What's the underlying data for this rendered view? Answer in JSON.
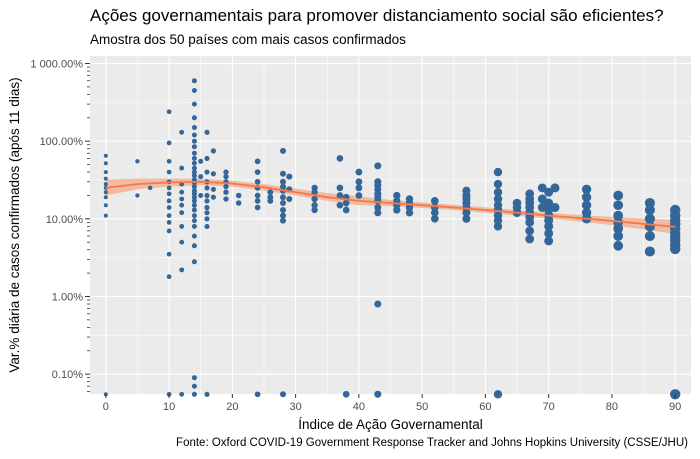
{
  "chart_data": {
    "type": "scatter",
    "title": "Ações governamentais para promover distanciamento social são eficientes?",
    "subtitle": "Amostra dos 50 países com mais casos confirmados",
    "caption": "Fonte: Oxford COVID-19 Government Response Tracker and Johns Hopkins University (CSSE/JHU)",
    "xlabel": "Índice de Ação Governamental",
    "ylabel": "Var.% diária de casos confirmados (após 11 dias)",
    "xlim": [
      -2.5,
      92.5
    ],
    "ylim": [
      0.0555,
      1250
    ],
    "y_scale": "log",
    "x_ticks": [
      0,
      10,
      20,
      30,
      40,
      50,
      60,
      70,
      80,
      90
    ],
    "x_tick_labels": [
      "0",
      "10",
      "20",
      "30",
      "40",
      "50",
      "60",
      "70",
      "80",
      "90"
    ],
    "y_ticks": [
      0.1,
      1,
      10,
      100,
      1000
    ],
    "y_tick_labels": [
      "0.10%",
      "1.00%",
      "10.00%",
      "100.00%",
      "1 000.00%"
    ],
    "grid": true,
    "point_color": "#336699",
    "trend_color": "#f4794a",
    "band_color": "#f4a582",
    "background_color": "#ebebeb",
    "points": [
      {
        "x": 0,
        "y": 65
      },
      {
        "x": 0,
        "y": 52
      },
      {
        "x": 0,
        "y": 40
      },
      {
        "x": 0,
        "y": 33
      },
      {
        "x": 0,
        "y": 28
      },
      {
        "x": 0,
        "y": 25
      },
      {
        "x": 0,
        "y": 22
      },
      {
        "x": 0,
        "y": 19
      },
      {
        "x": 0,
        "y": 15
      },
      {
        "x": 0,
        "y": 11
      },
      {
        "x": 0,
        "y": 0.055
      },
      {
        "x": 5,
        "y": 55
      },
      {
        "x": 5,
        "y": 20
      },
      {
        "x": 7,
        "y": 25
      },
      {
        "x": 10,
        "y": 240
      },
      {
        "x": 10,
        "y": 95
      },
      {
        "x": 10,
        "y": 55
      },
      {
        "x": 10,
        "y": 40
      },
      {
        "x": 10,
        "y": 30
      },
      {
        "x": 10,
        "y": 25
      },
      {
        "x": 10,
        "y": 21
      },
      {
        "x": 10,
        "y": 17
      },
      {
        "x": 10,
        "y": 14
      },
      {
        "x": 10,
        "y": 11
      },
      {
        "x": 10,
        "y": 9
      },
      {
        "x": 10,
        "y": 7
      },
      {
        "x": 10,
        "y": 3.5
      },
      {
        "x": 10,
        "y": 1.8
      },
      {
        "x": 10,
        "y": 0.055
      },
      {
        "x": 12,
        "y": 130
      },
      {
        "x": 12,
        "y": 45
      },
      {
        "x": 12,
        "y": 28
      },
      {
        "x": 12,
        "y": 22
      },
      {
        "x": 12,
        "y": 18
      },
      {
        "x": 12,
        "y": 15
      },
      {
        "x": 12,
        "y": 12
      },
      {
        "x": 12,
        "y": 8
      },
      {
        "x": 12,
        "y": 5
      },
      {
        "x": 12,
        "y": 2.2
      },
      {
        "x": 12,
        "y": 0.055
      },
      {
        "x": 14,
        "y": 600
      },
      {
        "x": 14,
        "y": 450
      },
      {
        "x": 14,
        "y": 300
      },
      {
        "x": 14,
        "y": 200
      },
      {
        "x": 14,
        "y": 150
      },
      {
        "x": 14,
        "y": 120
      },
      {
        "x": 14,
        "y": 100
      },
      {
        "x": 14,
        "y": 85
      },
      {
        "x": 14,
        "y": 70
      },
      {
        "x": 14,
        "y": 60
      },
      {
        "x": 14,
        "y": 52
      },
      {
        "x": 14,
        "y": 45
      },
      {
        "x": 14,
        "y": 40
      },
      {
        "x": 14,
        "y": 36
      },
      {
        "x": 14,
        "y": 32
      },
      {
        "x": 14,
        "y": 29
      },
      {
        "x": 14,
        "y": 26
      },
      {
        "x": 14,
        "y": 23
      },
      {
        "x": 14,
        "y": 21
      },
      {
        "x": 14,
        "y": 19
      },
      {
        "x": 14,
        "y": 17
      },
      {
        "x": 14,
        "y": 15
      },
      {
        "x": 14,
        "y": 13
      },
      {
        "x": 14,
        "y": 11
      },
      {
        "x": 14,
        "y": 9.5
      },
      {
        "x": 14,
        "y": 8
      },
      {
        "x": 14,
        "y": 6
      },
      {
        "x": 14,
        "y": 4.5
      },
      {
        "x": 14,
        "y": 2.8
      },
      {
        "x": 14,
        "y": 0.09
      },
      {
        "x": 14,
        "y": 0.07
      },
      {
        "x": 14,
        "y": 0.055
      },
      {
        "x": 15,
        "y": 55
      },
      {
        "x": 15,
        "y": 35
      },
      {
        "x": 15,
        "y": 20
      },
      {
        "x": 16,
        "y": 130
      },
      {
        "x": 16,
        "y": 60
      },
      {
        "x": 16,
        "y": 40
      },
      {
        "x": 16,
        "y": 30
      },
      {
        "x": 16,
        "y": 25
      },
      {
        "x": 16,
        "y": 20
      },
      {
        "x": 16,
        "y": 17
      },
      {
        "x": 16,
        "y": 14
      },
      {
        "x": 16,
        "y": 12
      },
      {
        "x": 16,
        "y": 10
      },
      {
        "x": 16,
        "y": 8
      },
      {
        "x": 16,
        "y": 0.055
      },
      {
        "x": 17,
        "y": 75
      },
      {
        "x": 17,
        "y": 38
      },
      {
        "x": 17,
        "y": 24
      },
      {
        "x": 17,
        "y": 19
      },
      {
        "x": 19,
        "y": 40
      },
      {
        "x": 19,
        "y": 35
      },
      {
        "x": 19,
        "y": 30
      },
      {
        "x": 19,
        "y": 26
      },
      {
        "x": 19,
        "y": 22
      },
      {
        "x": 19,
        "y": 18
      },
      {
        "x": 21,
        "y": 20
      },
      {
        "x": 21,
        "y": 16
      },
      {
        "x": 24,
        "y": 55
      },
      {
        "x": 24,
        "y": 40
      },
      {
        "x": 24,
        "y": 30
      },
      {
        "x": 24,
        "y": 25
      },
      {
        "x": 24,
        "y": 20
      },
      {
        "x": 24,
        "y": 17
      },
      {
        "x": 24,
        "y": 14
      },
      {
        "x": 24,
        "y": 0.055
      },
      {
        "x": 26,
        "y": 22
      },
      {
        "x": 26,
        "y": 19
      },
      {
        "x": 26,
        "y": 17
      },
      {
        "x": 28,
        "y": 75
      },
      {
        "x": 28,
        "y": 38
      },
      {
        "x": 28,
        "y": 30
      },
      {
        "x": 28,
        "y": 26
      },
      {
        "x": 28,
        "y": 23
      },
      {
        "x": 28,
        "y": 19
      },
      {
        "x": 28,
        "y": 16
      },
      {
        "x": 28,
        "y": 13
      },
      {
        "x": 28,
        "y": 11
      },
      {
        "x": 28,
        "y": 9.5
      },
      {
        "x": 28,
        "y": 0.055
      },
      {
        "x": 29,
        "y": 35
      },
      {
        "x": 29,
        "y": 24
      },
      {
        "x": 29,
        "y": 18
      },
      {
        "x": 33,
        "y": 25
      },
      {
        "x": 33,
        "y": 22
      },
      {
        "x": 33,
        "y": 18
      },
      {
        "x": 33,
        "y": 15
      },
      {
        "x": 33,
        "y": 13
      },
      {
        "x": 37,
        "y": 60
      },
      {
        "x": 37,
        "y": 25
      },
      {
        "x": 37,
        "y": 20
      },
      {
        "x": 37,
        "y": 15
      },
      {
        "x": 38,
        "y": 19
      },
      {
        "x": 38,
        "y": 16
      },
      {
        "x": 38,
        "y": 13
      },
      {
        "x": 38,
        "y": 0.055
      },
      {
        "x": 40,
        "y": 40
      },
      {
        "x": 40,
        "y": 30
      },
      {
        "x": 40,
        "y": 25
      },
      {
        "x": 40,
        "y": 20
      },
      {
        "x": 43,
        "y": 48
      },
      {
        "x": 43,
        "y": 30
      },
      {
        "x": 43,
        "y": 27
      },
      {
        "x": 43,
        "y": 24
      },
      {
        "x": 43,
        "y": 21
      },
      {
        "x": 43,
        "y": 19
      },
      {
        "x": 43,
        "y": 17
      },
      {
        "x": 43,
        "y": 14
      },
      {
        "x": 43,
        "y": 12
      },
      {
        "x": 43,
        "y": 0.8
      },
      {
        "x": 43,
        "y": 0.055
      },
      {
        "x": 46,
        "y": 20
      },
      {
        "x": 46,
        "y": 17
      },
      {
        "x": 46,
        "y": 15
      },
      {
        "x": 46,
        "y": 13
      },
      {
        "x": 48,
        "y": 18
      },
      {
        "x": 48,
        "y": 16
      },
      {
        "x": 48,
        "y": 14
      },
      {
        "x": 48,
        "y": 12
      },
      {
        "x": 52,
        "y": 17
      },
      {
        "x": 52,
        "y": 14
      },
      {
        "x": 52,
        "y": 12
      },
      {
        "x": 52,
        "y": 10
      },
      {
        "x": 57,
        "y": 23
      },
      {
        "x": 57,
        "y": 20
      },
      {
        "x": 57,
        "y": 18
      },
      {
        "x": 57,
        "y": 16
      },
      {
        "x": 57,
        "y": 14
      },
      {
        "x": 57,
        "y": 12
      },
      {
        "x": 57,
        "y": 10
      },
      {
        "x": 62,
        "y": 40
      },
      {
        "x": 62,
        "y": 28
      },
      {
        "x": 62,
        "y": 22
      },
      {
        "x": 62,
        "y": 18
      },
      {
        "x": 62,
        "y": 15
      },
      {
        "x": 62,
        "y": 13
      },
      {
        "x": 62,
        "y": 11
      },
      {
        "x": 62,
        "y": 9.5
      },
      {
        "x": 62,
        "y": 8
      },
      {
        "x": 62,
        "y": 0.055
      },
      {
        "x": 65,
        "y": 16
      },
      {
        "x": 65,
        "y": 14
      },
      {
        "x": 65,
        "y": 12
      },
      {
        "x": 67,
        "y": 21
      },
      {
        "x": 67,
        "y": 18
      },
      {
        "x": 67,
        "y": 16
      },
      {
        "x": 67,
        "y": 14
      },
      {
        "x": 67,
        "y": 12
      },
      {
        "x": 67,
        "y": 10.5
      },
      {
        "x": 67,
        "y": 9
      },
      {
        "x": 67,
        "y": 7
      },
      {
        "x": 67,
        "y": 5.5
      },
      {
        "x": 69,
        "y": 25
      },
      {
        "x": 69,
        "y": 18
      },
      {
        "x": 69,
        "y": 14
      },
      {
        "x": 70,
        "y": 22
      },
      {
        "x": 70,
        "y": 16
      },
      {
        "x": 70,
        "y": 13
      },
      {
        "x": 70,
        "y": 11
      },
      {
        "x": 70,
        "y": 9.5
      },
      {
        "x": 70,
        "y": 8
      },
      {
        "x": 70,
        "y": 6.5
      },
      {
        "x": 70,
        "y": 5.2
      },
      {
        "x": 71,
        "y": 25
      },
      {
        "x": 71,
        "y": 14
      },
      {
        "x": 76,
        "y": 24
      },
      {
        "x": 76,
        "y": 19
      },
      {
        "x": 76,
        "y": 15
      },
      {
        "x": 76,
        "y": 12
      },
      {
        "x": 76,
        "y": 10
      },
      {
        "x": 81,
        "y": 20
      },
      {
        "x": 81,
        "y": 15
      },
      {
        "x": 81,
        "y": 11
      },
      {
        "x": 81,
        "y": 9
      },
      {
        "x": 81,
        "y": 7.5
      },
      {
        "x": 81,
        "y": 6
      },
      {
        "x": 81,
        "y": 4.5
      },
      {
        "x": 86,
        "y": 16
      },
      {
        "x": 86,
        "y": 13
      },
      {
        "x": 86,
        "y": 10
      },
      {
        "x": 86,
        "y": 8
      },
      {
        "x": 86,
        "y": 6
      },
      {
        "x": 86,
        "y": 3.8
      },
      {
        "x": 90,
        "y": 13
      },
      {
        "x": 90,
        "y": 11
      },
      {
        "x": 90,
        "y": 9.5
      },
      {
        "x": 90,
        "y": 8.5
      },
      {
        "x": 90,
        "y": 7.5
      },
      {
        "x": 90,
        "y": 6.5
      },
      {
        "x": 90,
        "y": 5.8
      },
      {
        "x": 90,
        "y": 5.2
      },
      {
        "x": 90,
        "y": 4.6
      },
      {
        "x": 90,
        "y": 4.1
      },
      {
        "x": 90,
        "y": 0.055
      }
    ],
    "trend": [
      {
        "x": 0,
        "y": 25,
        "lo": 20,
        "hi": 32
      },
      {
        "x": 5,
        "y": 28,
        "lo": 24,
        "hi": 33
      },
      {
        "x": 10,
        "y": 29.5,
        "lo": 26,
        "hi": 33
      },
      {
        "x": 15,
        "y": 30,
        "lo": 27,
        "hi": 33
      },
      {
        "x": 20,
        "y": 28.5,
        "lo": 26,
        "hi": 31
      },
      {
        "x": 25,
        "y": 25.5,
        "lo": 23,
        "hi": 28
      },
      {
        "x": 30,
        "y": 22,
        "lo": 20,
        "hi": 24.5
      },
      {
        "x": 35,
        "y": 19,
        "lo": 17,
        "hi": 21.5
      },
      {
        "x": 40,
        "y": 17,
        "lo": 15,
        "hi": 19.5
      },
      {
        "x": 45,
        "y": 16,
        "lo": 14.5,
        "hi": 17.5
      },
      {
        "x": 50,
        "y": 15,
        "lo": 13.8,
        "hi": 16.3
      },
      {
        "x": 55,
        "y": 14,
        "lo": 13,
        "hi": 15.2
      },
      {
        "x": 60,
        "y": 13,
        "lo": 12,
        "hi": 14.1
      },
      {
        "x": 65,
        "y": 12,
        "lo": 11,
        "hi": 13
      },
      {
        "x": 70,
        "y": 11,
        "lo": 10.1,
        "hi": 12
      },
      {
        "x": 75,
        "y": 10.2,
        "lo": 9.2,
        "hi": 11.2
      },
      {
        "x": 80,
        "y": 9.4,
        "lo": 8.3,
        "hi": 10.6
      },
      {
        "x": 85,
        "y": 8.6,
        "lo": 7.3,
        "hi": 10.1
      },
      {
        "x": 90,
        "y": 7.9,
        "lo": 6.4,
        "hi": 9.7
      }
    ]
  }
}
